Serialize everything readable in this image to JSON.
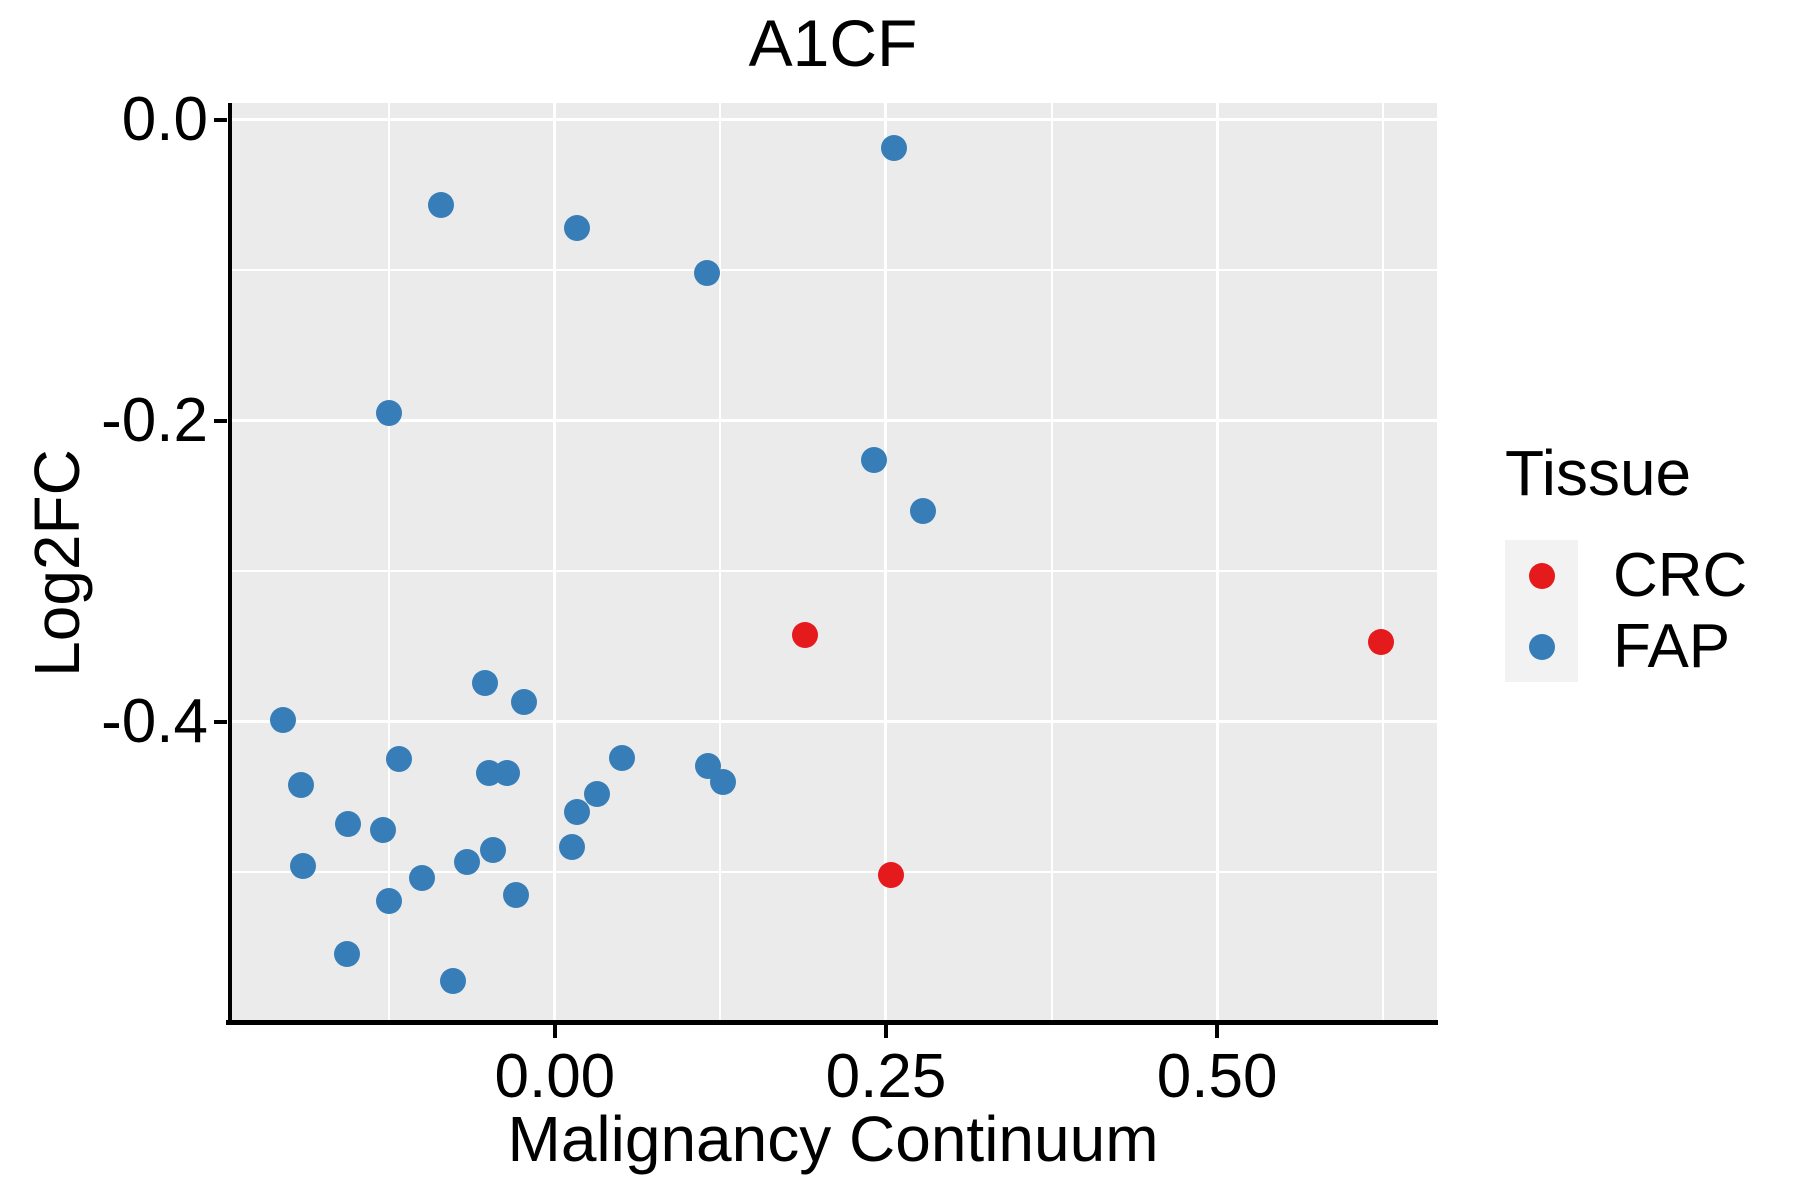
{
  "title": "A1CF",
  "axes": {
    "x": {
      "label": "Malignancy Continuum",
      "ticks": [
        "0.00",
        "0.25",
        "0.50"
      ]
    },
    "y": {
      "label": "Log2FC",
      "ticks": [
        "0.0",
        "-0.2",
        "-0.4"
      ]
    }
  },
  "legend": {
    "title": "Tissue",
    "items": [
      {
        "label": "CRC",
        "color": "#E41A1C"
      },
      {
        "label": "FAP",
        "color": "#377EB8"
      }
    ]
  },
  "colors": {
    "panel_bg": "#EBEBEB",
    "grid": "#FFFFFF",
    "axis": "#000000",
    "legend_key_bg": "#F2F2F2",
    "crc_red": "#E41A1C",
    "fap_blue": "#377EB8"
  },
  "chart_data": {
    "type": "scatter",
    "title": "A1CF",
    "xlabel": "Malignancy Continuum",
    "ylabel": "Log2FC",
    "xlim": [
      -0.246,
      0.666
    ],
    "ylim": [
      -0.6,
      0.011
    ],
    "x_major_ticks": [
      0.0,
      0.25,
      0.5
    ],
    "x_minor_ticks": [
      -0.125,
      0.125,
      0.375,
      0.625
    ],
    "y_major_ticks": [
      0.0,
      -0.2,
      -0.4
    ],
    "y_minor_ticks": [
      -0.1,
      -0.3,
      -0.5
    ],
    "grid": true,
    "legend_title": "Tissue",
    "legend_position": "right",
    "series": [
      {
        "name": "CRC",
        "color": "#E41A1C",
        "points": [
          [
            0.189,
            -0.342
          ],
          [
            0.254,
            -0.502
          ],
          [
            0.624,
            -0.347
          ]
        ]
      },
      {
        "name": "FAP",
        "color": "#377EB8",
        "points": [
          [
            -0.086,
            -0.057
          ],
          [
            0.017,
            -0.072
          ],
          [
            0.115,
            -0.102
          ],
          [
            0.256,
            -0.019
          ],
          [
            -0.125,
            -0.195
          ],
          [
            0.241,
            -0.226
          ],
          [
            0.278,
            -0.26
          ],
          [
            -0.205,
            -0.399
          ],
          [
            -0.053,
            -0.374
          ],
          [
            -0.023,
            -0.387
          ],
          [
            -0.192,
            -0.442
          ],
          [
            -0.118,
            -0.425
          ],
          [
            -0.156,
            -0.468
          ],
          [
            -0.13,
            -0.472
          ],
          [
            -0.05,
            -0.434
          ],
          [
            -0.036,
            -0.434
          ],
          [
            0.051,
            -0.424
          ],
          [
            0.032,
            -0.448
          ],
          [
            0.017,
            -0.46
          ],
          [
            0.013,
            -0.483
          ],
          [
            0.116,
            -0.429
          ],
          [
            0.127,
            -0.44
          ],
          [
            -0.19,
            -0.496
          ],
          [
            -0.1,
            -0.504
          ],
          [
            -0.125,
            -0.519
          ],
          [
            -0.066,
            -0.493
          ],
          [
            -0.047,
            -0.485
          ],
          [
            -0.029,
            -0.515
          ],
          [
            -0.157,
            -0.554
          ],
          [
            -0.077,
            -0.572
          ]
        ]
      }
    ]
  }
}
